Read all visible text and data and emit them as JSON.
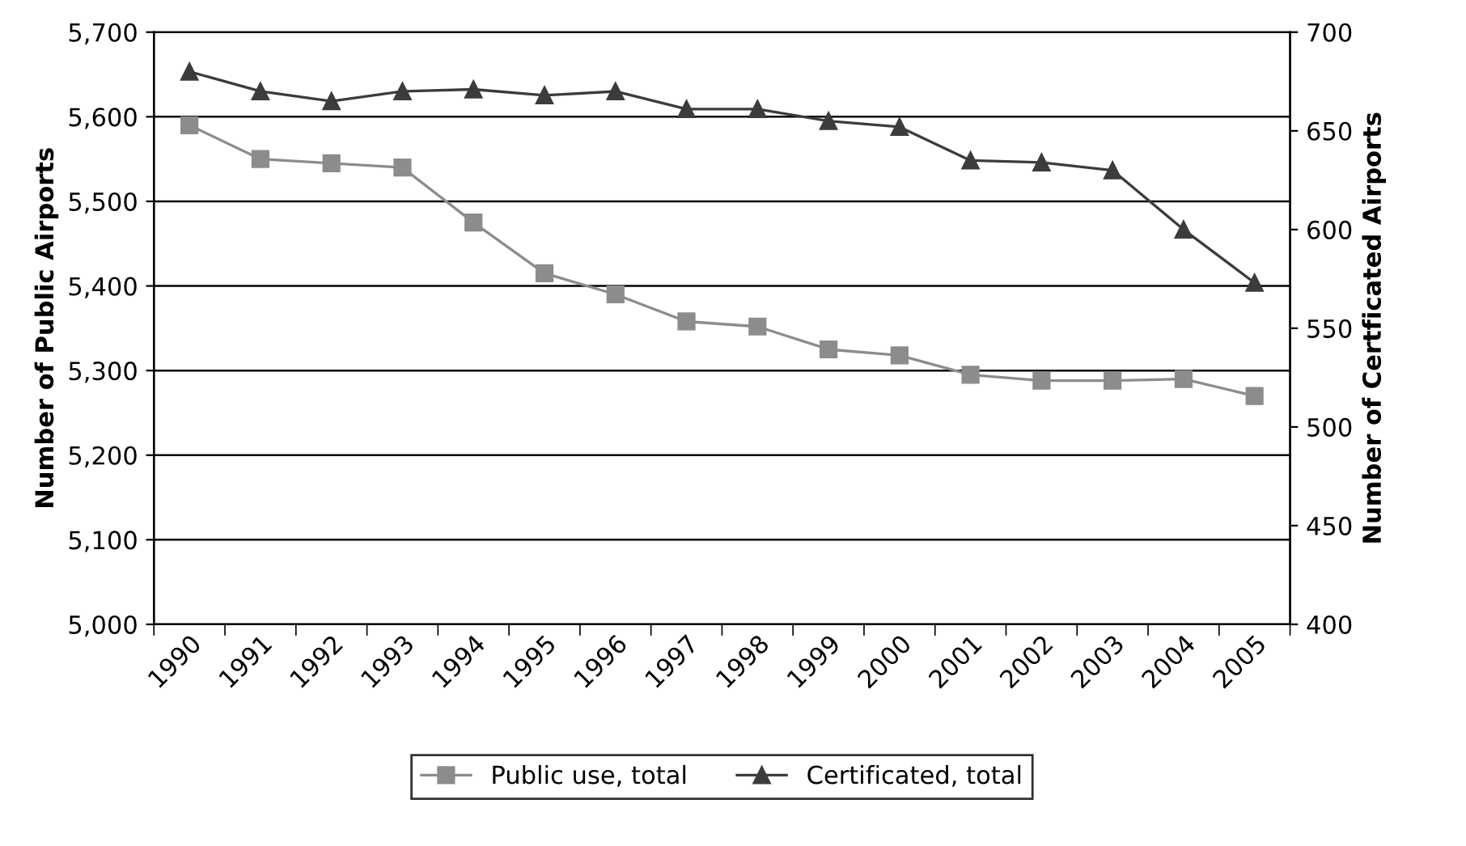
{
  "chart_data": {
    "type": "line",
    "categories": [
      "1990",
      "1991",
      "1992",
      "1993",
      "1994",
      "1995",
      "1996",
      "1997",
      "1998",
      "1999",
      "2000",
      "2001",
      "2002",
      "2003",
      "2004",
      "2005"
    ],
    "ylabel": "Number of Public Airports",
    "y2label": "Number of Certficated Airports",
    "ylim": [
      5000,
      5700
    ],
    "yticks": [
      {
        "value": 5000,
        "label": "5,000"
      },
      {
        "value": 5100,
        "label": "5,100"
      },
      {
        "value": 5200,
        "label": "5,200"
      },
      {
        "value": 5300,
        "label": "5,300"
      },
      {
        "value": 5400,
        "label": "5,400"
      },
      {
        "value": 5500,
        "label": "5,500"
      },
      {
        "value": 5600,
        "label": "5,600"
      },
      {
        "value": 5700,
        "label": "5,700"
      }
    ],
    "y2lim": [
      400,
      700
    ],
    "y2ticks": [
      400,
      450,
      500,
      550,
      600,
      650,
      700
    ],
    "grid": "y",
    "legend": "bottom",
    "series": [
      {
        "name": "Public use, total",
        "color": "#8c8c8c",
        "marker": "square",
        "values": [
          5590,
          5550,
          5545,
          5540,
          5475,
          5415,
          5390,
          5358,
          5352,
          5325,
          5318,
          5295,
          5288,
          5288,
          5290,
          5270
        ]
      },
      {
        "name": "Certificated, total",
        "color": "#3c3c3c",
        "marker": "triangle",
        "axis": "y2",
        "values": [
          680,
          670,
          665,
          670,
          671,
          668,
          670,
          661,
          661,
          655,
          652,
          635,
          634,
          630,
          600,
          573
        ]
      }
    ]
  }
}
